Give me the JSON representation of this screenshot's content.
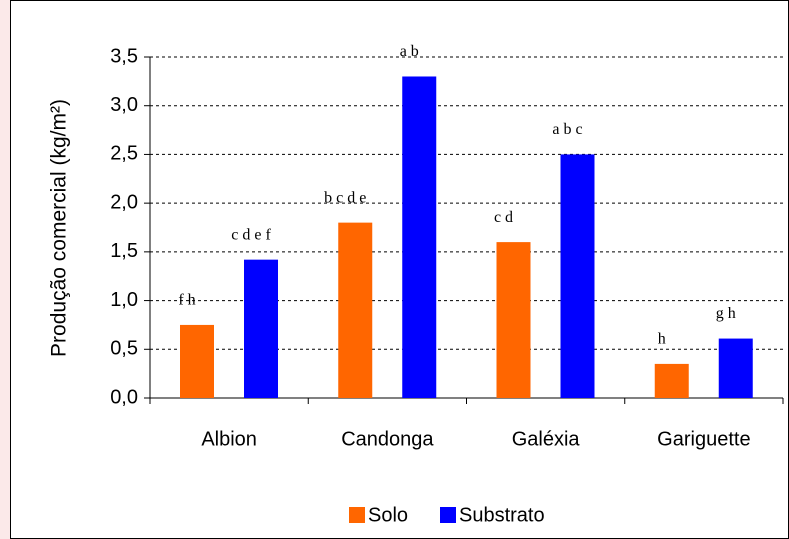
{
  "chart_data": {
    "type": "bar",
    "y_label": "Produção comercial (kg/m²)",
    "categories": [
      "Albion",
      "Candonga",
      "Galéxia",
      "Gariguette"
    ],
    "series": [
      {
        "name": "Solo",
        "color": "#ff6600",
        "values": [
          0.75,
          1.8,
          1.6,
          0.35
        ],
        "annotations": [
          "f h",
          "b c d e",
          "c d",
          "h"
        ]
      },
      {
        "name": "Substrato",
        "color": "#0000ff",
        "values": [
          1.42,
          3.3,
          2.5,
          0.61
        ],
        "annotations": [
          "c d e f",
          "a b",
          "a b c",
          "g h"
        ]
      }
    ],
    "ylim": [
      0,
      3.5
    ],
    "yticks": [
      {
        "value": 0,
        "label": "0,0"
      },
      {
        "value": 0.5,
        "label": "0,5"
      },
      {
        "value": 1,
        "label": "1,0"
      },
      {
        "value": 1.5,
        "label": "1,5"
      },
      {
        "value": 2,
        "label": "2,0"
      },
      {
        "value": 2.5,
        "label": "2,5"
      },
      {
        "value": 3,
        "label": "3,0"
      },
      {
        "value": 3.5,
        "label": "3,5"
      }
    ],
    "grid": true
  }
}
